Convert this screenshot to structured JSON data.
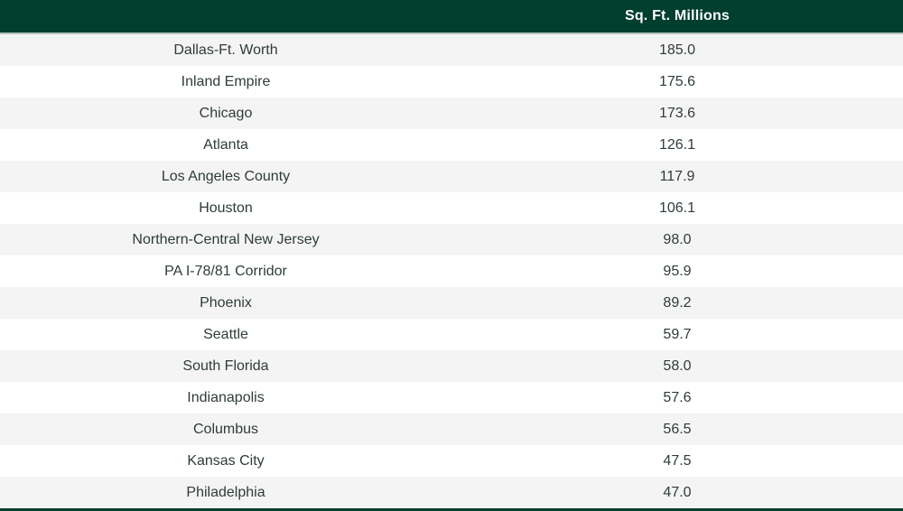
{
  "header": {
    "market_column_label": "",
    "value_column_label": "Sq. Ft. Millions"
  },
  "colors": {
    "header_bg": "#003f2d",
    "header_text": "#ffffff",
    "row_alt_bg": "#f5f4f4",
    "row_bg": "#ffffff",
    "cell_text": "#2e3c38",
    "bottom_rule": "#003f2d"
  },
  "chart_data": {
    "type": "table",
    "title": "",
    "columns": [
      "",
      "Sq. Ft. Millions"
    ],
    "legend": [],
    "rows": [
      {
        "market": "Dallas-Ft. Worth",
        "value": "185.0"
      },
      {
        "market": "Inland Empire",
        "value": "175.6"
      },
      {
        "market": "Chicago",
        "value": "173.6"
      },
      {
        "market": "Atlanta",
        "value": "126.1"
      },
      {
        "market": "Los Angeles County",
        "value": "117.9"
      },
      {
        "market": "Houston",
        "value": "106.1"
      },
      {
        "market": "Northern-Central New Jersey",
        "value": "98.0"
      },
      {
        "market": "PA I-78/81 Corridor",
        "value": "95.9"
      },
      {
        "market": "Phoenix",
        "value": "89.2"
      },
      {
        "market": "Seattle",
        "value": "59.7"
      },
      {
        "market": "South Florida",
        "value": "58.0"
      },
      {
        "market": "Indianapolis",
        "value": "57.6"
      },
      {
        "market": "Columbus",
        "value": "56.5"
      },
      {
        "market": "Kansas City",
        "value": "47.5"
      },
      {
        "market": "Philadelphia",
        "value": "47.0"
      }
    ]
  }
}
